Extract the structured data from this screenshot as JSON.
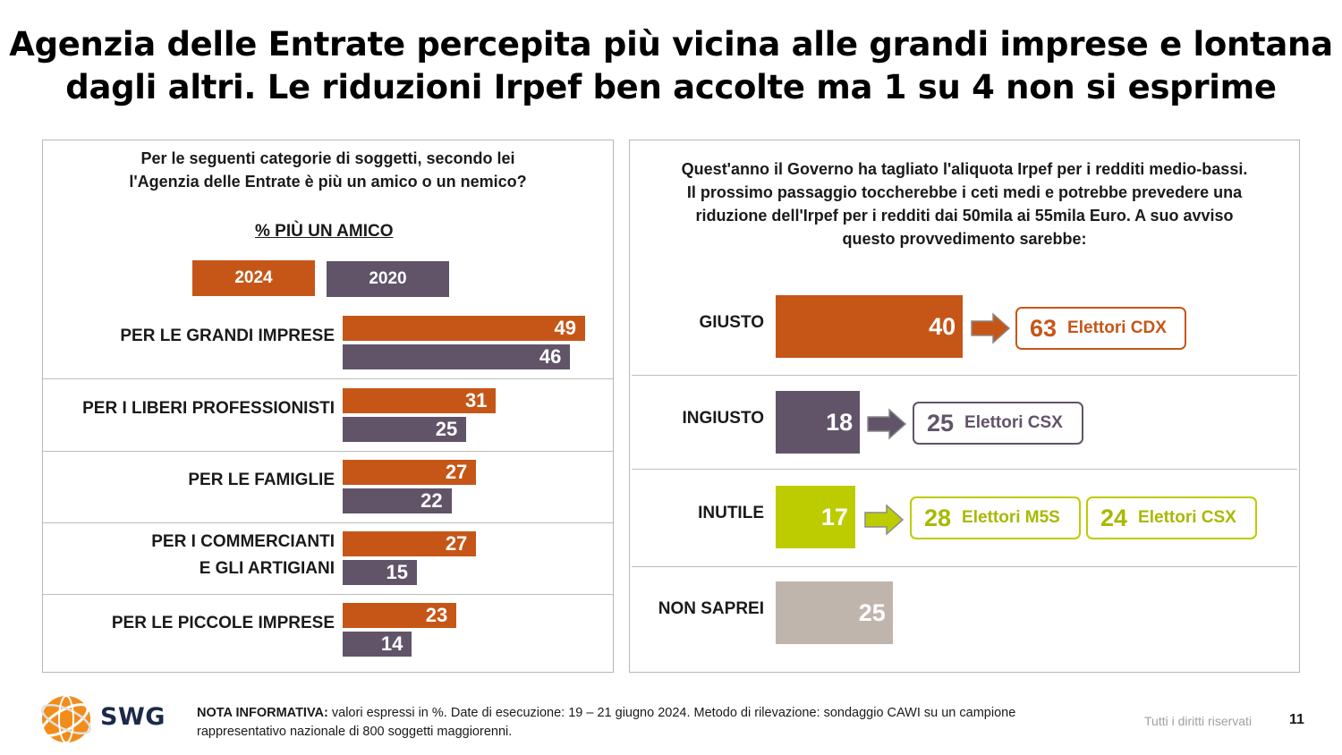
{
  "title_line1": "Agenzia delle Entrate percepita più vicina alle grandi imprese e lontana",
  "title_line2": "dagli altri. Le riduzioni Irpef ben accolte ma 1 su 4 non si esprime",
  "left": {
    "question_line1": "Per le seguenti categorie di soggetti, secondo lei",
    "question_line2": "l'Agenzia delle Entrate è più un amico o un nemico?",
    "subheading": "% PIÙ UN AMICO",
    "legend_2024": "2024",
    "legend_2020": "2020"
  },
  "right": {
    "question_line1": "Quest'anno il Governo ha tagliato l'aliquota Irpef per i redditi medio-bassi.",
    "question_line2": "Il prossimo passaggio toccherebbe i ceti medi e potrebbe prevedere una",
    "question_line3": "riduzione dell'Irpef per i redditi dai 50mila ai 55mila Euro. A suo avviso",
    "question_line4": "questo provvedimento sarebbe:",
    "callouts": {
      "giusto_cdx_num": "63",
      "giusto_cdx_txt": "Elettori CDX",
      "ingiusto_csx_num": "25",
      "ingiusto_csx_txt": "Elettori CSX",
      "inutile_m5s_num": "28",
      "inutile_m5s_txt": "Elettori M5S",
      "inutile_csx_num": "24",
      "inutile_csx_txt": "Elettori CSX"
    }
  },
  "colors": {
    "y2024": "#C65617",
    "y2020": "#615469",
    "giusto": "#C65617",
    "ingiusto": "#615469",
    "inutile": "#BDCC00",
    "non_saprei": "#BFB5AD"
  },
  "chart_data": [
    {
      "type": "bar",
      "orientation": "horizontal",
      "categories": [
        "PER LE GRANDI IMPRESE",
        "PER I LIBERI PROFESSIONISTI",
        "PER LE FAMIGLIE",
        "PER I COMMERCIANTI E GLI ARTIGIANI",
        "PER LE PICCOLE IMPRESE"
      ],
      "category_lines": [
        [
          "PER LE GRANDI IMPRESE"
        ],
        [
          "PER I LIBERI PROFESSIONISTI"
        ],
        [
          "PER LE FAMIGLIE"
        ],
        [
          "PER I COMMERCIANTI",
          "E GLI ARTIGIANI"
        ],
        [
          "PER LE PICCOLE IMPRESE"
        ]
      ],
      "series": [
        {
          "name": "2024",
          "values": [
            49,
            31,
            27,
            27,
            23
          ]
        },
        {
          "name": "2020",
          "values": [
            46,
            25,
            22,
            15,
            14
          ]
        }
      ],
      "legend": "top"
    },
    {
      "type": "bar",
      "orientation": "horizontal",
      "categories": [
        "GIUSTO",
        "INGIUSTO",
        "INUTILE",
        "NON SAPREI"
      ],
      "values": [
        40,
        18,
        17,
        25
      ]
    }
  ],
  "footer": {
    "note_label": "NOTA INFORMATIVA:",
    "note_text": " valori espressi in %. Date di esecuzione: 19 – 21 giugno 2024. Metodo di rilevazione: sondaggio CAWI su un campione rappresentativo nazionale di 800 soggetti maggiorenni.",
    "rights": "Tutti i diritti riservati",
    "page": "11",
    "logo": "SWG"
  }
}
